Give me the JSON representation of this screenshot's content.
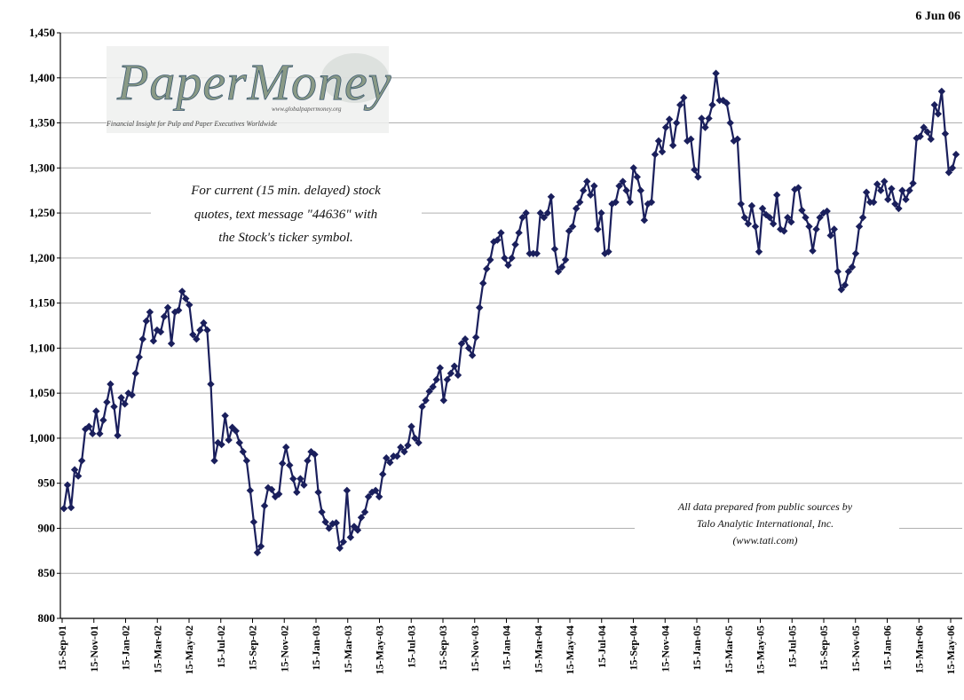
{
  "date_label": "6 Jun 06",
  "logo": {
    "name": "PaperMoney",
    "url": "www.globalpapermoney.org",
    "tagline": "Financial Insight for Pulp and Paper Executives Worldwide"
  },
  "annotations": {
    "quote_note": [
      "For current (15 min. delayed) stock",
      "quotes, text message \"44636\" with",
      "the Stock's ticker symbol."
    ],
    "source_note": [
      "All data prepared from public sources by",
      "Talo Analytic International, Inc.",
      "(www.tati.com)"
    ]
  },
  "colors": {
    "series": "#1a1f5c",
    "grid": "#b0b0b0",
    "axis": "#000000"
  },
  "chart_data": {
    "type": "line",
    "title": "",
    "xlabel": "",
    "ylabel": "",
    "ylim": [
      800,
      1450
    ],
    "yticks": [
      800,
      850,
      900,
      950,
      1000,
      1050,
      1100,
      1150,
      1200,
      1250,
      1300,
      1350,
      1400,
      1450
    ],
    "ytick_labels": [
      "800",
      "850",
      "900",
      "950",
      "1,000",
      "1,050",
      "1,100",
      "1,150",
      "1,200",
      "1,250",
      "1,300",
      "1,350",
      "1,400",
      "1,450"
    ],
    "xtick_labels": [
      "15-Sep-01",
      "15-Nov-01",
      "15-Jan-02",
      "15-Mar-02",
      "15-May-02",
      "15-Jul-02",
      "15-Sep-02",
      "15-Nov-02",
      "15-Jan-03",
      "15-Mar-03",
      "15-May-03",
      "15-Jul-03",
      "15-Sep-03",
      "15-Nov-03",
      "15-Jan-04",
      "15-Mar-04",
      "15-May-04",
      "15-Jul-04",
      "15-Sep-04",
      "15-Nov-04",
      "15-Jan-05",
      "15-Mar-05",
      "15-May-05",
      "15-Jul-05",
      "15-Sep-05",
      "15-Nov-05",
      "15-Jan-06",
      "15-Mar-06",
      "15-May-06"
    ],
    "grid": "horizontal",
    "legend": "none",
    "marker": "diamond",
    "series": [
      {
        "values": [
          922,
          948,
          923,
          965,
          958,
          975,
          1010,
          1013,
          1005,
          1030,
          1005,
          1020,
          1040,
          1060,
          1035,
          1003,
          1045,
          1038,
          1050,
          1048,
          1072,
          1090,
          1110,
          1130,
          1140,
          1108,
          1120,
          1118,
          1135,
          1145,
          1105,
          1140,
          1142,
          1163,
          1155,
          1148,
          1115,
          1110,
          1120,
          1128,
          1120,
          1060,
          975,
          995,
          993,
          1025,
          998,
          1012,
          1008,
          995,
          985,
          975,
          942,
          907,
          873,
          880,
          925,
          945,
          943,
          935,
          938,
          972,
          990,
          970,
          955,
          940,
          955,
          948,
          975,
          985,
          982,
          940,
          918,
          907,
          900,
          905,
          906,
          878,
          885,
          942,
          890,
          902,
          898,
          912,
          918,
          935,
          940,
          942,
          935,
          960,
          978,
          973,
          980,
          980,
          990,
          985,
          992,
          1013,
          1000,
          995,
          1035,
          1042,
          1052,
          1057,
          1065,
          1078,
          1042,
          1065,
          1072,
          1080,
          1070,
          1105,
          1110,
          1100,
          1092,
          1112,
          1145,
          1172,
          1188,
          1198,
          1218,
          1220,
          1228,
          1200,
          1192,
          1200,
          1215,
          1228,
          1245,
          1250,
          1205,
          1205,
          1205,
          1250,
          1245,
          1250,
          1268,
          1210,
          1185,
          1190,
          1198,
          1230,
          1235,
          1255,
          1262,
          1275,
          1285,
          1270,
          1280,
          1232,
          1250,
          1205,
          1207,
          1260,
          1262,
          1280,
          1285,
          1275,
          1262,
          1300,
          1290,
          1275,
          1242,
          1260,
          1262,
          1315,
          1330,
          1318,
          1345,
          1354,
          1325,
          1350,
          1370,
          1378,
          1330,
          1332,
          1298,
          1290,
          1355,
          1345,
          1355,
          1370,
          1405,
          1375,
          1375,
          1372,
          1350,
          1330,
          1332,
          1260,
          1245,
          1238,
          1258,
          1235,
          1207,
          1255,
          1248,
          1245,
          1238,
          1270,
          1232,
          1230,
          1245,
          1240,
          1276,
          1278,
          1253,
          1245,
          1235,
          1208,
          1232,
          1245,
          1250,
          1252,
          1225,
          1232,
          1185,
          1165,
          1170,
          1185,
          1190,
          1205,
          1235,
          1245,
          1273,
          1262,
          1262,
          1282,
          1275,
          1285,
          1265,
          1277,
          1260,
          1255,
          1275,
          1265,
          1275,
          1283,
          1333,
          1335,
          1345,
          1340,
          1332,
          1370,
          1360,
          1385,
          1338,
          1295,
          1300,
          1315
        ]
      }
    ]
  }
}
